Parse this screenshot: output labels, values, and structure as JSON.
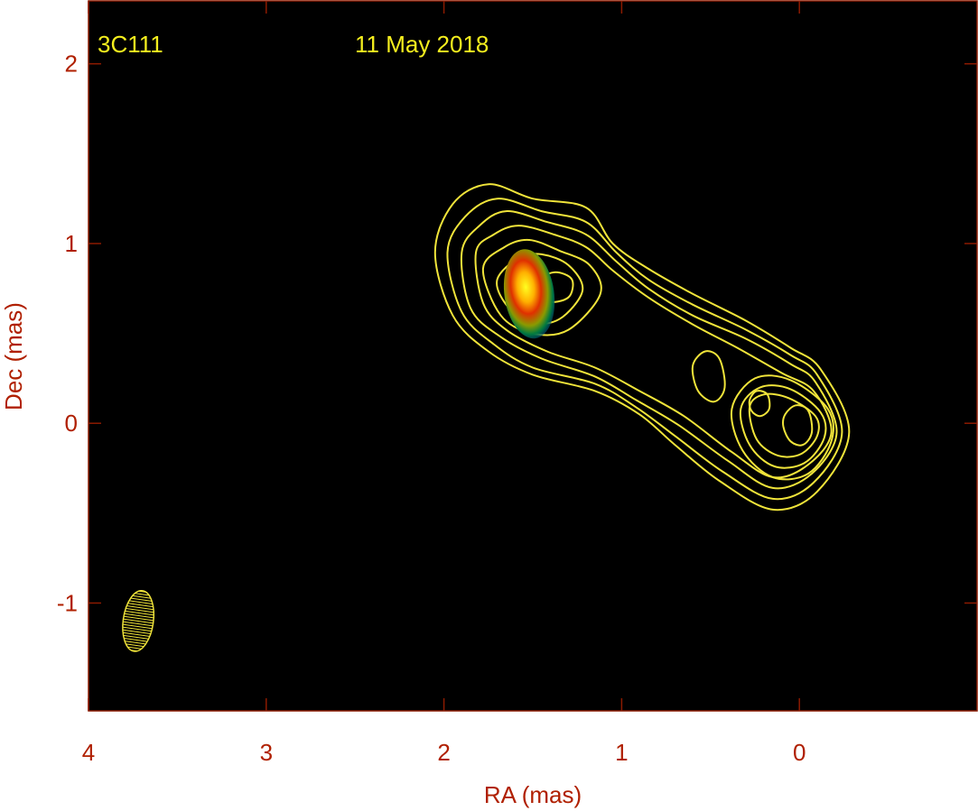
{
  "chart_data": {
    "type": "contour",
    "source_label": "3C111",
    "date_label": "11 May 2018",
    "xlabel": "RA (mas)",
    "ylabel": "Dec (mas)",
    "xlim": [
      4,
      -1
    ],
    "ylim": [
      -1.6,
      2.35
    ],
    "x_ticks": [
      4,
      3,
      2,
      1,
      0
    ],
    "y_ticks": [
      2,
      1,
      0,
      -1
    ],
    "x_axis_reversed": true,
    "colors": {
      "background": "#000000",
      "frame": "#8b1a00",
      "axis_text": "#b02000",
      "contour": "#f0e43a",
      "overlay_text": "#f5ef1e"
    },
    "contours": [
      {
        "level": 1,
        "closed": true,
        "points": [
          [
            2.05,
            0.95
          ],
          [
            1.95,
            1.22
          ],
          [
            1.75,
            1.33
          ],
          [
            1.5,
            1.25
          ],
          [
            1.2,
            1.2
          ],
          [
            1.05,
            1.0
          ],
          [
            0.85,
            0.86
          ],
          [
            0.6,
            0.72
          ],
          [
            0.3,
            0.57
          ],
          [
            0.05,
            0.42
          ],
          [
            -0.12,
            0.3
          ],
          [
            -0.28,
            -0.05
          ],
          [
            -0.1,
            -0.38
          ],
          [
            0.15,
            -0.48
          ],
          [
            0.45,
            -0.32
          ],
          [
            0.7,
            -0.12
          ],
          [
            0.9,
            0.05
          ],
          [
            1.15,
            0.18
          ],
          [
            1.5,
            0.27
          ],
          [
            1.75,
            0.4
          ],
          [
            1.95,
            0.6
          ]
        ]
      },
      {
        "level": 2,
        "closed": true,
        "points": [
          [
            1.98,
            0.95
          ],
          [
            1.88,
            1.15
          ],
          [
            1.7,
            1.25
          ],
          [
            1.45,
            1.18
          ],
          [
            1.2,
            1.12
          ],
          [
            1.03,
            0.95
          ],
          [
            0.85,
            0.8
          ],
          [
            0.6,
            0.66
          ],
          [
            0.3,
            0.52
          ],
          [
            0.05,
            0.38
          ],
          [
            -0.1,
            0.27
          ],
          [
            -0.24,
            -0.05
          ],
          [
            -0.08,
            -0.33
          ],
          [
            0.15,
            -0.42
          ],
          [
            0.43,
            -0.27
          ],
          [
            0.7,
            -0.07
          ],
          [
            0.92,
            0.09
          ],
          [
            1.15,
            0.22
          ],
          [
            1.5,
            0.31
          ],
          [
            1.72,
            0.44
          ],
          [
            1.9,
            0.62
          ]
        ]
      },
      {
        "level": 3,
        "closed": true,
        "points": [
          [
            1.9,
            0.95
          ],
          [
            1.8,
            1.1
          ],
          [
            1.65,
            1.18
          ],
          [
            1.42,
            1.12
          ],
          [
            1.2,
            1.05
          ],
          [
            1.03,
            0.9
          ],
          [
            0.85,
            0.75
          ],
          [
            0.6,
            0.6
          ],
          [
            0.3,
            0.47
          ],
          [
            0.05,
            0.33
          ],
          [
            -0.09,
            0.23
          ],
          [
            -0.21,
            -0.05
          ],
          [
            -0.07,
            -0.28
          ],
          [
            0.15,
            -0.36
          ],
          [
            0.4,
            -0.21
          ],
          [
            0.68,
            -0.01
          ],
          [
            0.92,
            0.13
          ],
          [
            1.15,
            0.26
          ],
          [
            1.45,
            0.36
          ],
          [
            1.68,
            0.48
          ],
          [
            1.85,
            0.64
          ]
        ]
      },
      {
        "level": 4,
        "closed": true,
        "points": [
          [
            1.82,
            0.95
          ],
          [
            1.72,
            1.05
          ],
          [
            1.58,
            1.1
          ],
          [
            1.38,
            1.05
          ],
          [
            1.2,
            0.98
          ],
          [
            1.05,
            0.85
          ],
          [
            0.85,
            0.7
          ],
          [
            0.6,
            0.55
          ],
          [
            0.35,
            0.42
          ],
          [
            0.1,
            0.28
          ],
          [
            -0.08,
            0.18
          ],
          [
            -0.18,
            -0.05
          ],
          [
            -0.05,
            -0.23
          ],
          [
            0.15,
            -0.3
          ],
          [
            0.38,
            -0.16
          ],
          [
            0.65,
            0.04
          ],
          [
            0.9,
            0.18
          ],
          [
            1.15,
            0.31
          ],
          [
            1.42,
            0.4
          ],
          [
            1.65,
            0.52
          ],
          [
            1.78,
            0.67
          ]
        ]
      },
      {
        "level": 5,
        "closed": true,
        "points": [
          [
            1.78,
            0.86
          ],
          [
            1.66,
            0.98
          ],
          [
            1.52,
            1.02
          ],
          [
            1.35,
            0.96
          ],
          [
            1.18,
            0.88
          ],
          [
            1.12,
            0.72
          ],
          [
            1.3,
            0.52
          ],
          [
            1.5,
            0.5
          ],
          [
            1.68,
            0.6
          ]
        ]
      },
      {
        "level": 6,
        "closed": true,
        "points": [
          [
            1.7,
            0.8
          ],
          [
            1.58,
            0.92
          ],
          [
            1.45,
            0.94
          ],
          [
            1.3,
            0.88
          ],
          [
            1.22,
            0.74
          ],
          [
            1.35,
            0.58
          ],
          [
            1.52,
            0.56
          ],
          [
            1.65,
            0.66
          ]
        ]
      },
      {
        "level": 7,
        "closed": true,
        "points": [
          [
            1.48,
            0.78
          ],
          [
            1.38,
            0.84
          ],
          [
            1.28,
            0.8
          ],
          [
            1.3,
            0.7
          ],
          [
            1.42,
            0.68
          ]
        ]
      },
      {
        "level": 8,
        "closed": true,
        "points": [
          [
            0.6,
            0.32
          ],
          [
            0.53,
            0.4
          ],
          [
            0.45,
            0.36
          ],
          [
            0.42,
            0.2
          ],
          [
            0.48,
            0.12
          ],
          [
            0.57,
            0.18
          ]
        ]
      },
      {
        "level": 9,
        "closed": true,
        "points": [
          [
            0.38,
            0.08
          ],
          [
            0.25,
            0.25
          ],
          [
            0.05,
            0.24
          ],
          [
            -0.16,
            0.08
          ],
          [
            -0.18,
            -0.1
          ],
          [
            -0.05,
            -0.28
          ],
          [
            0.15,
            -0.3
          ],
          [
            0.32,
            -0.15
          ]
        ]
      },
      {
        "level": 10,
        "closed": true,
        "points": [
          [
            0.33,
            0.08
          ],
          [
            0.22,
            0.2
          ],
          [
            0.05,
            0.19
          ],
          [
            -0.12,
            0.06
          ],
          [
            -0.14,
            -0.08
          ],
          [
            -0.03,
            -0.22
          ],
          [
            0.14,
            -0.24
          ],
          [
            0.28,
            -0.12
          ]
        ]
      },
      {
        "level": 11,
        "closed": true,
        "points": [
          [
            0.28,
            0.09
          ],
          [
            0.2,
            0.16
          ],
          [
            0.06,
            0.14
          ],
          [
            -0.09,
            0.04
          ],
          [
            -0.1,
            -0.07
          ],
          [
            -0.01,
            -0.17
          ],
          [
            0.12,
            -0.18
          ],
          [
            0.24,
            -0.09
          ]
        ]
      },
      {
        "level": 12,
        "closed": true,
        "points": [
          [
            0.28,
            0.13
          ],
          [
            0.24,
            0.18
          ],
          [
            0.18,
            0.16
          ],
          [
            0.17,
            0.08
          ],
          [
            0.22,
            0.04
          ],
          [
            0.27,
            0.07
          ]
        ]
      },
      {
        "level": 13,
        "closed": true,
        "points": [
          [
            0.08,
            0.05
          ],
          [
            0.02,
            0.1
          ],
          [
            -0.05,
            0.07
          ],
          [
            -0.07,
            -0.05
          ],
          [
            -0.02,
            -0.12
          ],
          [
            0.05,
            -0.1
          ],
          [
            0.09,
            -0.02
          ]
        ]
      }
    ],
    "core_component": {
      "x": 1.52,
      "y": 0.72,
      "x_extent": 0.14,
      "y_extent": 0.25
    },
    "beam": {
      "x": 3.72,
      "y": -1.1,
      "major": 0.34,
      "minor": 0.17
    }
  }
}
